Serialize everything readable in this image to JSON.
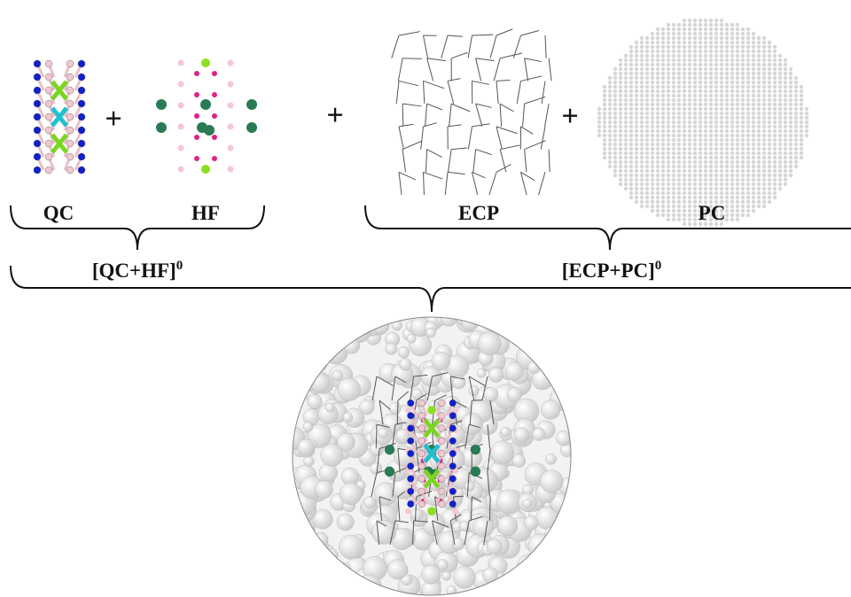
{
  "labels": {
    "qc": "QC",
    "hf": "HF",
    "ecp": "ECP",
    "pc": "PC"
  },
  "plus_signs": [
    "+",
    "+",
    "+"
  ],
  "groups": [
    {
      "text": "[QC+HF]",
      "sup": "0"
    },
    {
      "text": "[ECP+PC]",
      "sup": "0"
    }
  ]
}
